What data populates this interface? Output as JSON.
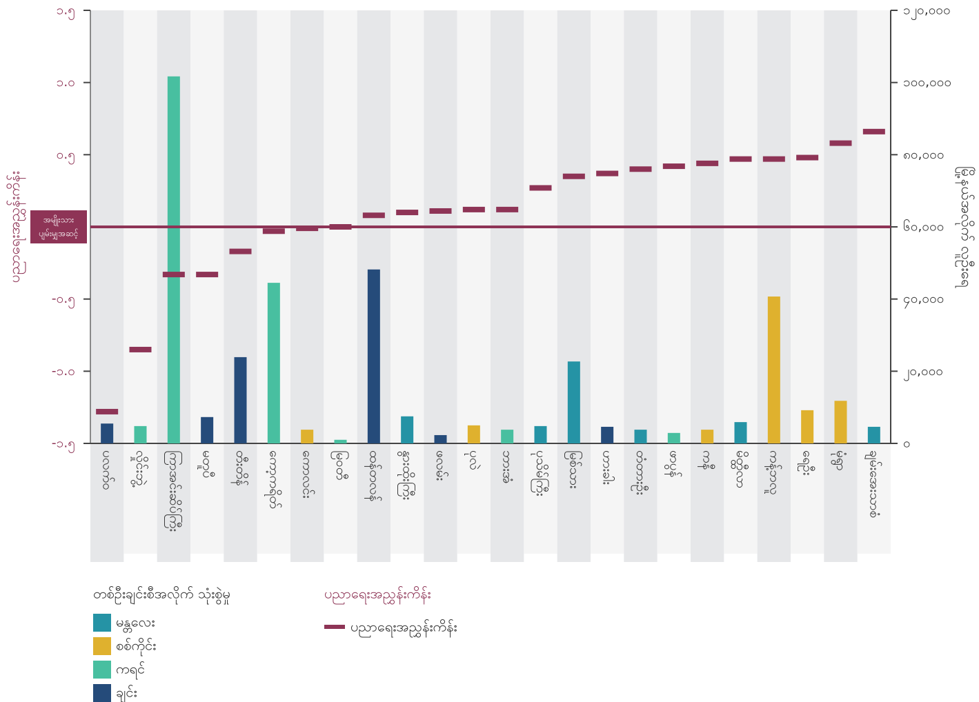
{
  "chart_data": {
    "type": "bar",
    "categories": [
      "ပလက်ဝ",
      "လှိုင်းဘွဲ့",
      "ကြာအင်းဆိပ်ကြီး",
      "မတူပီ",
      "တီးတိန်",
      "ကော့ကရိတ်",
      "ကောလင်း",
      "မြဝတီ",
      "ထန်တလန်",
      "နွားထိုးကြီး",
      "ဖလမ်း",
      "ပုလဲ",
      "ဘားအံ",
      "ပုသိမ်ကြီး",
      "မြစ်သား",
      "ဟားခါး",
      "တံတားဦး",
      "ဖာပွန်",
      "ကနီ",
      "မိတ္ထီလာ",
      "ကန့်ဘလူ",
      "ရေဦး",
      "မုံရွာ",
      "ချမ်းအေးသာစံ"
    ],
    "series": [
      {
        "name": "တစ်ဦးချင်းစီအလိုက် သုံးစွဲမှု",
        "type": "bar",
        "axis": "y2",
        "values": [
          5500,
          4800,
          101700,
          7300,
          23900,
          44500,
          3800,
          1000,
          48200,
          7500,
          2300,
          5000,
          3800,
          4800,
          22700,
          4600,
          3800,
          2900,
          3800,
          5900,
          40700,
          9200,
          11800,
          4600
        ],
        "colors": [
          "#254b7a",
          "#48bfa0",
          "#48bfa0",
          "#254b7a",
          "#254b7a",
          "#48bfa0",
          "#dfb12e",
          "#48bfa0",
          "#254b7a",
          "#2593a5",
          "#254b7a",
          "#dfb12e",
          "#48bfa0",
          "#2593a5",
          "#2593a5",
          "#254b7a",
          "#2593a5",
          "#48bfa0",
          "#dfb12e",
          "#2593a5",
          "#dfb12e",
          "#dfb12e",
          "#dfb12e",
          "#2593a5"
        ]
      },
      {
        "name": "ပညာရေးအညွှန်းကိန်း",
        "type": "marker",
        "axis": "y",
        "color": "#8e3456",
        "values": [
          -1.28,
          -0.85,
          -0.33,
          -0.33,
          -0.17,
          -0.03,
          -0.01,
          0.0,
          0.08,
          0.1,
          0.11,
          0.12,
          0.12,
          0.27,
          0.35,
          0.37,
          0.4,
          0.42,
          0.44,
          0.47,
          0.47,
          0.48,
          0.58,
          0.66
        ]
      }
    ],
    "bar_legend": [
      {
        "name": "မန္တလေး",
        "color": "#2593a5"
      },
      {
        "name": "စစ်ကိုင်း",
        "color": "#dfb12e"
      },
      {
        "name": "ကရင်",
        "color": "#48bfa0"
      },
      {
        "name": "ချင်း",
        "color": "#254b7a"
      }
    ],
    "line_legend_title": "ပညာရေးအညွှန်းကိန်း",
    "ylabel": "ပညာရေးအညွှန်းကိန်း",
    "y2label": "မြို့နယ်အလိုက် လူဦးရေ",
    "reference": {
      "value": 0,
      "label": [
        "အမျိုးသား",
        "ပျမ်းမျှအဆင့်"
      ]
    },
    "ylim": [
      -1.5,
      1.5
    ],
    "yticks": [
      {
        "value": -1.5,
        "label": "-၁.၅"
      },
      {
        "value": -1.0,
        "label": "-၁.၀"
      },
      {
        "value": -0.5,
        "label": "-၀.၅"
      },
      {
        "value": 0.5,
        "label": "၀.၅"
      },
      {
        "value": 1.0,
        "label": "၁.၀"
      },
      {
        "value": 1.5,
        "label": "၁.၅"
      }
    ],
    "y2lim": [
      0,
      120000
    ],
    "y2ticks": [
      {
        "value": 0,
        "label": "၀"
      },
      {
        "value": 20000,
        "label": "၂၀,၀၀၀"
      },
      {
        "value": 40000,
        "label": "၄၀,၀၀၀"
      },
      {
        "value": 60000,
        "label": "၆၀,၀၀၀"
      },
      {
        "value": 80000,
        "label": "၈၀,၀၀၀"
      },
      {
        "value": 100000,
        "label": "၁၀၀,၀၀၀"
      },
      {
        "value": 120000,
        "label": "၁၂၀,၀၀၀"
      }
    ]
  }
}
